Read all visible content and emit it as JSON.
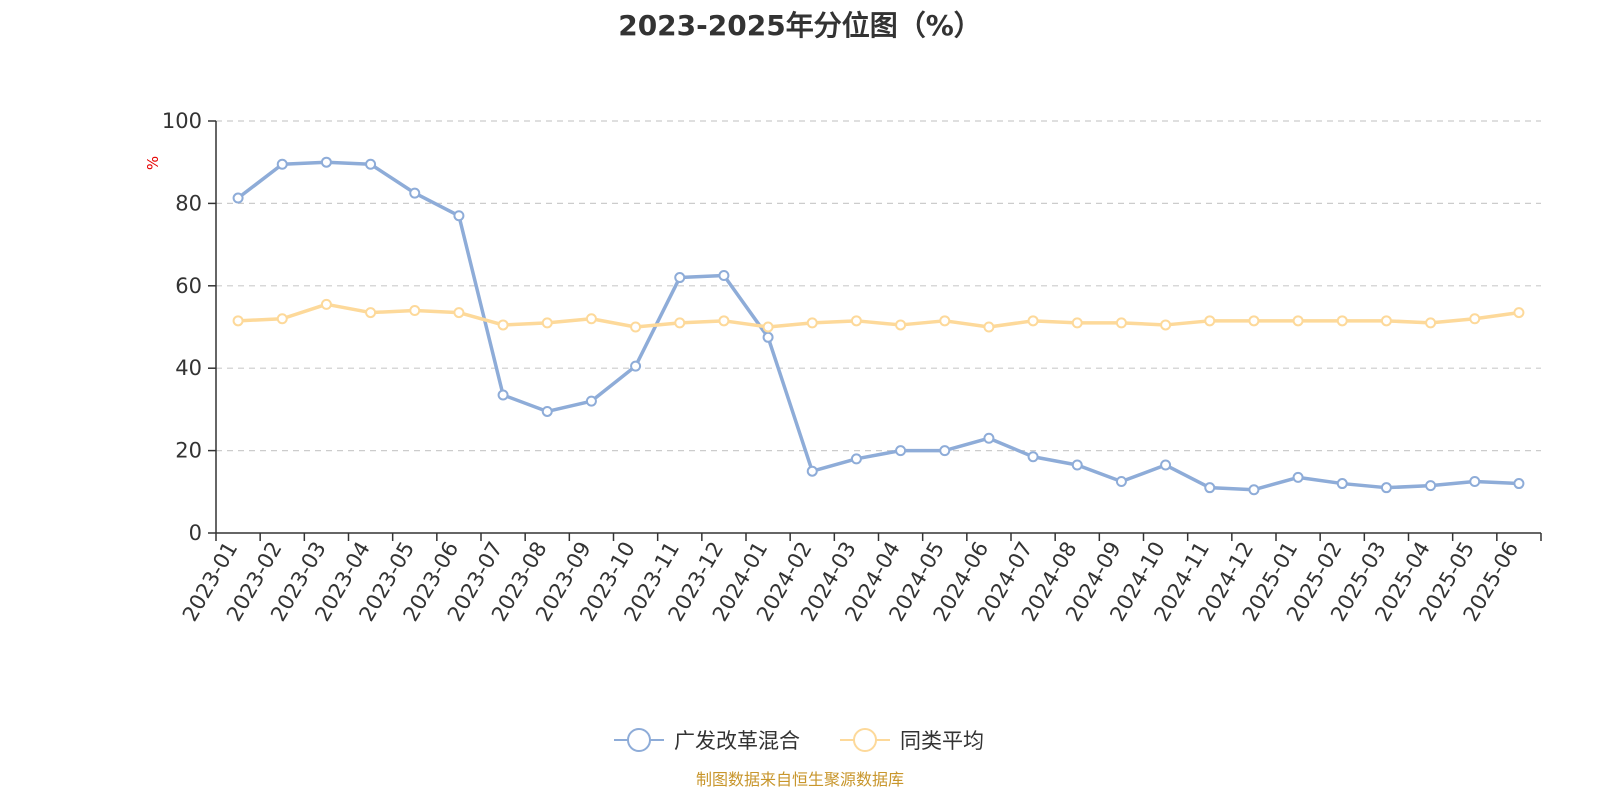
{
  "chart_data": {
    "type": "line",
    "title": "2023-2025年分位图（%）",
    "ylabel": "%",
    "xlabel": "",
    "ylim": [
      0,
      100
    ],
    "yticks": [
      0,
      20,
      40,
      60,
      80,
      100
    ],
    "grid": true,
    "legend_position": "bottom",
    "categories": [
      "2023-01",
      "2023-02",
      "2023-03",
      "2023-04",
      "2023-05",
      "2023-06",
      "2023-07",
      "2023-08",
      "2023-09",
      "2023-10",
      "2023-11",
      "2023-12",
      "2024-01",
      "2024-02",
      "2024-03",
      "2024-04",
      "2024-05",
      "2024-06",
      "2024-07",
      "2024-08",
      "2024-09",
      "2024-10",
      "2024-11",
      "2024-12",
      "2025-01",
      "2025-02",
      "2025-03",
      "2025-04",
      "2025-05",
      "2025-06"
    ],
    "series": [
      {
        "name": "广发改革混合",
        "color": "#8eacd8",
        "values": [
          81.3,
          89.5,
          90.0,
          89.5,
          82.5,
          77.0,
          33.5,
          29.5,
          32.0,
          40.5,
          62.0,
          62.5,
          47.5,
          15.0,
          18.0,
          20.0,
          20.0,
          23.0,
          18.5,
          16.5,
          12.5,
          16.5,
          11.0,
          10.5,
          13.5,
          12.0,
          11.0,
          11.5,
          12.5,
          12.0
        ]
      },
      {
        "name": "同类平均",
        "color": "#fdd99a",
        "values": [
          51.5,
          52.0,
          55.5,
          53.5,
          54.0,
          53.5,
          50.5,
          51.0,
          52.0,
          50.0,
          51.0,
          51.5,
          50.0,
          51.0,
          51.5,
          50.5,
          51.5,
          50.0,
          51.5,
          51.0,
          51.0,
          50.5,
          51.5,
          51.5,
          51.5,
          51.5,
          51.5,
          51.0,
          52.0,
          53.5
        ]
      }
    ]
  },
  "source_note": "制图数据来自恒生聚源数据库"
}
